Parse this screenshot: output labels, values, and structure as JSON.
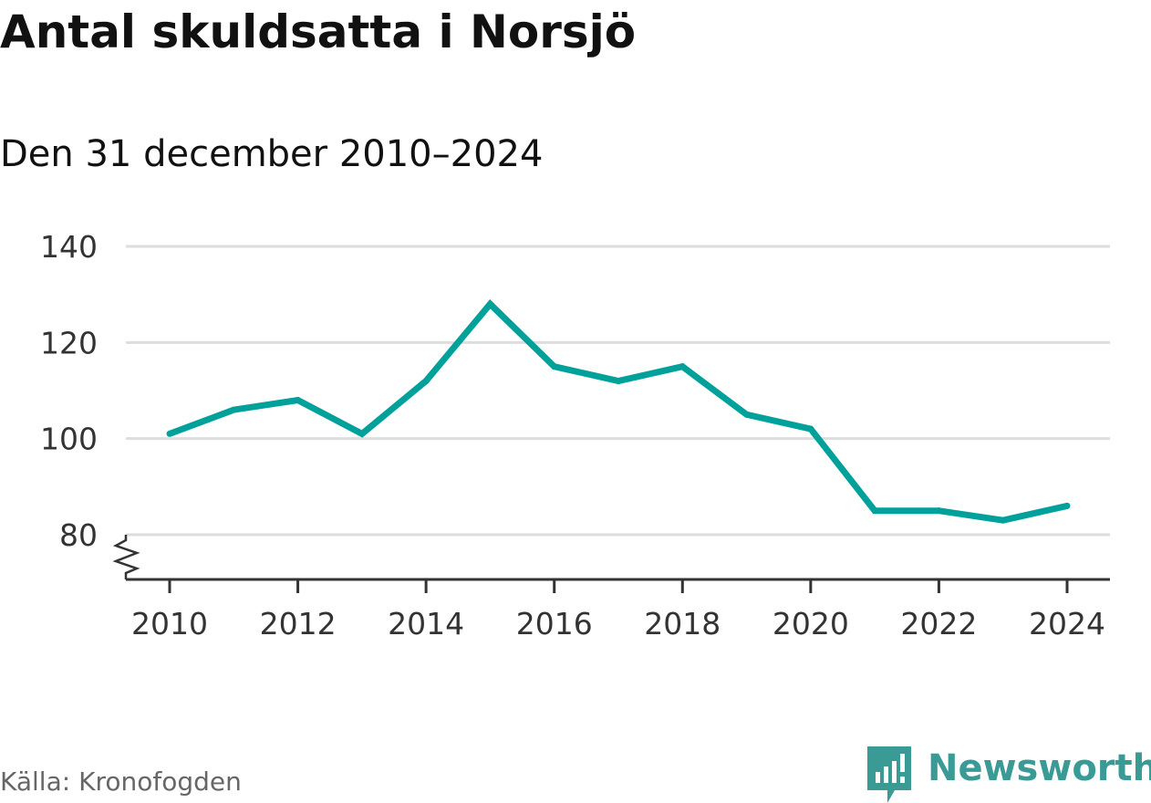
{
  "title": "Antal skuldsatta i Norsjö",
  "subtitle": "Den 31 december 2010–2024",
  "source": "Källa: Kronofogden",
  "brand": {
    "name": "Newsworthy",
    "icon": "newsworthy-logo-icon",
    "color": "#3a9a96"
  },
  "colors": {
    "line": "#00a19a",
    "grid": "#dddddd",
    "axis": "#333333",
    "text": "#111111"
  },
  "chart_data": {
    "type": "line",
    "title": "Antal skuldsatta i Norsjö",
    "subtitle": "Den 31 december 2010–2024",
    "xlabel": "",
    "ylabel": "",
    "x": [
      2010,
      2011,
      2012,
      2013,
      2014,
      2015,
      2016,
      2017,
      2018,
      2019,
      2020,
      2021,
      2022,
      2023,
      2024
    ],
    "series": [
      {
        "values": [
          101,
          106,
          108,
          101,
          112,
          128,
          115,
          112,
          115,
          105,
          102,
          85,
          85,
          83,
          86
        ]
      }
    ],
    "xticks": [
      "2010",
      "2012",
      "2014",
      "2016",
      "2018",
      "2020",
      "2022",
      "2024"
    ],
    "yticks": [
      "80",
      "100",
      "120",
      "140"
    ],
    "xlim": [
      2010,
      2024
    ],
    "ylim": [
      80,
      140
    ],
    "grid": true,
    "axis_break": true,
    "legend": "none"
  }
}
